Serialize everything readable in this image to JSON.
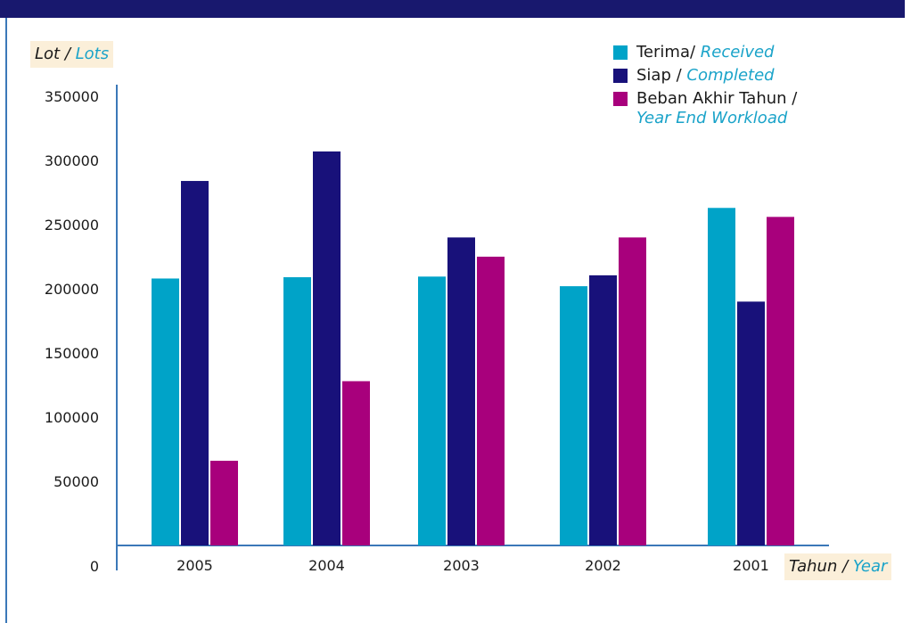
{
  "chart_data": {
    "type": "bar",
    "categories": [
      "2005",
      "2004",
      "2003",
      "2002",
      "2001"
    ],
    "series": [
      {
        "name": "Terima/ Received",
        "name_primary": "Terima/",
        "name_secondary": "Received",
        "color": "#00a3c8",
        "values": [
          208000,
          209000,
          209500,
          202000,
          263000
        ]
      },
      {
        "name": "Siap / Completed",
        "name_primary": "Siap /",
        "name_secondary": "Completed",
        "color": "#18117a",
        "values": [
          284000,
          307000,
          240000,
          210500,
          190000
        ]
      },
      {
        "name": "Beban Akhir Tahun / Year End Workload",
        "name_primary": "Beban Akhir Tahun /",
        "name_secondary": "Year End Workload",
        "color": "#a8007c",
        "values": [
          66000,
          128000,
          225000,
          240000,
          256000
        ]
      }
    ],
    "yticks": [
      "0",
      "50000",
      "100000",
      "150000",
      "200000",
      "250000",
      "300000",
      "350000"
    ],
    "ylim": [
      0,
      350000
    ],
    "ylabel": {
      "primary": "Lot /",
      "secondary": "Lots"
    },
    "xlabel": {
      "primary": "Tahun /",
      "secondary": "Year"
    },
    "legend_position": "top-right",
    "grid": false,
    "axis_color": "#3b78b8"
  }
}
